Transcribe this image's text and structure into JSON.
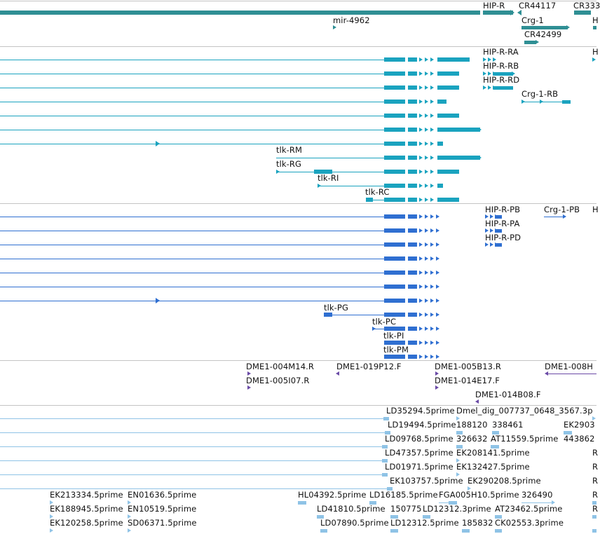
{
  "colors": {
    "gene": "#2f8f94",
    "transcript": "#1aa3bf",
    "protein": "#2f6fd1",
    "clone": "#6a4aa6",
    "est": "#8fc3e6",
    "divider": "#c4c4c4"
  },
  "genes": {
    "labels": [
      "HIP-R",
      "CR44117",
      "CR333",
      "mir-4962",
      "Crg-1",
      "CR42499",
      "H"
    ]
  },
  "transcripts": {
    "labels": [
      "HIP-R-RA",
      "H",
      "HIP-R-RB",
      "HIP-R-RD",
      "Crg-1-RB",
      "tlk-RM",
      "tlk-RG",
      "tlk-RI",
      "tlk-RC"
    ]
  },
  "proteins": {
    "labels": [
      "HIP-R-PB",
      "Crg-1-PB",
      "H",
      "HIP-R-PA",
      "HIP-R-PD",
      "tlk-PG",
      "tlk-PC",
      "tlk-PI",
      "tlk-PM"
    ]
  },
  "clones": {
    "labels": [
      "DME1-004M14.R",
      "DME1-019P12.F",
      "DME1-005B13.R",
      "DME1-008H",
      "DME1-005I07.R",
      "DME1-014E17.F",
      "DME1-014B08.F"
    ]
  },
  "ests": {
    "labels": [
      "LD35294.5prime",
      "Dmel_dig_007737_0648_3567.3p",
      "LD19494.5prime",
      "188120",
      "338461",
      "EK2903",
      "LD09768.5prime",
      "326632",
      "AT11559.5prime",
      "443862",
      "LD47357.5prime",
      "EK208141.5prime",
      "LD01971.5prime",
      "EK132427.5prime",
      "EK103757.5prime",
      "EK290208.5prime",
      "EK213334.5prime",
      "EN01636.5prime",
      "HL04392.5prime",
      "LD16185.5prime",
      "FGA005H10.5prime",
      "326490",
      "EK188945.5prime",
      "EN10519.5prime",
      "LD41810.5prime",
      "150775",
      "LD12312.3prime",
      "AT23462.5prime",
      "EK120258.5prime",
      "SD06371.5prime",
      "LD07890.5prime",
      "LD12312.5prime",
      "185832",
      "CK02553.3prime",
      "R",
      "R",
      "R",
      "R",
      "R"
    ]
  }
}
